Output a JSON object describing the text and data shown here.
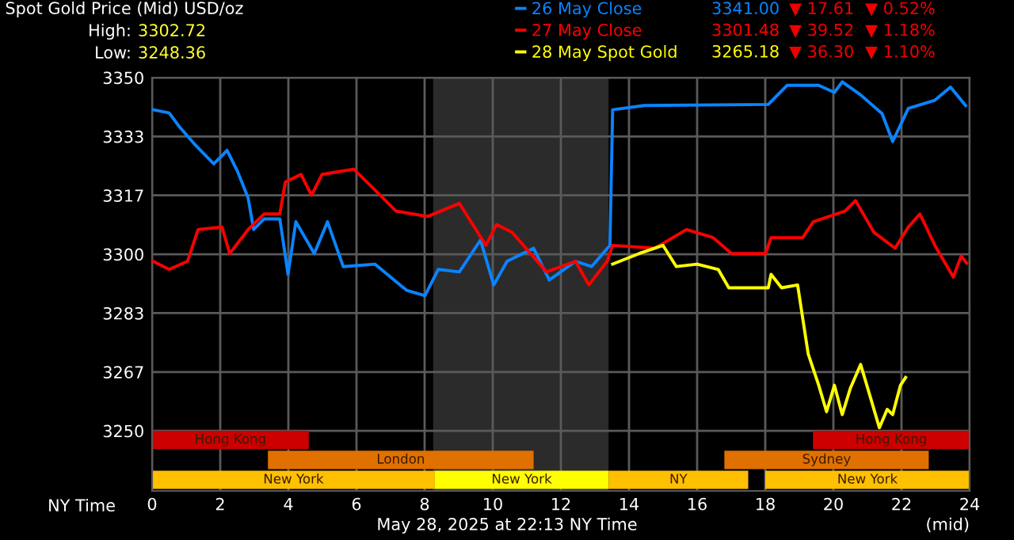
{
  "chart_data": {
    "type": "line",
    "title": "Spot Gold Price (Mid) USD/oz",
    "xlabel": "NY Time",
    "xlim": [
      0,
      24
    ],
    "ylim": [
      3233,
      3350
    ],
    "xticks": [
      0,
      2,
      4,
      6,
      8,
      10,
      12,
      14,
      16,
      18,
      20,
      22,
      24
    ],
    "yticks": [
      3250,
      {
        "value": 3266.67,
        "label": "3267"
      },
      {
        "value": 3283.33,
        "label": "3283"
      },
      3300,
      {
        "value": 3316.67,
        "label": "3317"
      },
      {
        "value": 3333.33,
        "label": "3333"
      },
      3350
    ],
    "grid": true,
    "legend": "top right",
    "line_style": "solid",
    "marker": "none",
    "bands": [
      {
        "axis": "x",
        "from": 8.25,
        "to": 13.4,
        "color": "#2b2b2b"
      },
      {
        "axis": "x",
        "from": 0,
        "to": 4.6,
        "label": "Hong Kong",
        "color": "#cc0000"
      },
      {
        "axis": "x",
        "from": 19.4,
        "to": 24,
        "label": "Hong Kong",
        "color": "#cc0000"
      },
      {
        "axis": "x",
        "from": 3.4,
        "to": 11.2,
        "label": "London",
        "color": "#e07000"
      },
      {
        "axis": "x",
        "from": 16.8,
        "to": 22.8,
        "label": "Sydney",
        "color": "#e07000"
      },
      {
        "axis": "x",
        "from": 0,
        "to": 8.3,
        "label": "New York",
        "color": "#ffc000"
      },
      {
        "axis": "x",
        "from": 8.3,
        "to": 13.4,
        "label": "New York",
        "color": "#ffff00"
      },
      {
        "axis": "x",
        "from": 13.4,
        "to": 17.5,
        "label": "NY",
        "color": "#ffc000"
      },
      {
        "axis": "x",
        "from": 18,
        "to": 24,
        "label": "New York",
        "color": "#ffc000"
      }
    ],
    "annotations": [
      "High:",
      "3302.72",
      "Low:",
      "3248.36",
      "3341.00",
      "▼ 17.61",
      "▼ 0.52%",
      "3301.48",
      "▼ 39.52",
      "▼ 1.18%",
      "3265.18",
      "▼ 36.30",
      "▼ 1.10%",
      "May 28, 2025 at 22:13 NY Time",
      "(mid)"
    ],
    "series": [
      {
        "name": "26 May Close",
        "color": "#0a84ff",
        "x": [
          0.03,
          0.5,
          0.8,
          1.27,
          1.81,
          2.05,
          2.2,
          2.51,
          2.82,
          2.98,
          3.29,
          3.75,
          3.99,
          4.22,
          4.76,
          5.15,
          5.61,
          6.54,
          7.47,
          8.01,
          8.4,
          9.02,
          9.64,
          10.03,
          10.42,
          11.2,
          11.66,
          12.43,
          12.9,
          13.44,
          13.52,
          14.45,
          18.09,
          18.64,
          19.57,
          20.03,
          20.26,
          20.8,
          21.43,
          21.74,
          22.2,
          22.98,
          23.44,
          23.88
        ],
        "values": [
          3340.9,
          3340,
          3336.1,
          3330.9,
          3325.6,
          3327.9,
          3329.4,
          3323.4,
          3315.9,
          3307,
          3310,
          3310,
          3294.3,
          3309.2,
          3300.2,
          3309.2,
          3296.5,
          3297.2,
          3289.8,
          3288.3,
          3295.7,
          3295,
          3304,
          3291.3,
          3298,
          3301.7,
          3292.7,
          3298,
          3296.5,
          3302.5,
          3340.9,
          3342.1,
          3342.4,
          3347.8,
          3347.8,
          3345.8,
          3348.8,
          3345.1,
          3339.8,
          3331.9,
          3341.3,
          3343.6,
          3347.3,
          3342.1
        ]
      },
      {
        "name": "27 May Close",
        "color": "#ff0000",
        "x": [
          0.03,
          0.5,
          1.04,
          1.35,
          2.05,
          2.28,
          2.82,
          3.29,
          3.75,
          3.91,
          4.37,
          4.68,
          4.99,
          5.92,
          6.54,
          7.16,
          8.09,
          9.02,
          9.8,
          10.11,
          10.57,
          11.58,
          12.43,
          12.82,
          13.36,
          13.52,
          14.76,
          15.69,
          16.47,
          17.01,
          18.01,
          18.17,
          19.1,
          19.41,
          20.34,
          20.65,
          21.19,
          21.81,
          22.2,
          22.54,
          22.98,
          23.52,
          23.75,
          23.91
        ],
        "values": [
          3298,
          3295.7,
          3298,
          3307,
          3307.7,
          3300.2,
          3307,
          3311.4,
          3311.4,
          3320.4,
          3322.6,
          3316.7,
          3322.6,
          3324.1,
          3318.2,
          3312.2,
          3310.7,
          3314.4,
          3302.5,
          3308.4,
          3306.2,
          3295,
          3298,
          3291.3,
          3298,
          3302.5,
          3301.7,
          3307,
          3304.7,
          3300.2,
          3300.2,
          3304.7,
          3304.7,
          3309.2,
          3312.2,
          3315.2,
          3306.2,
          3301.7,
          3307.7,
          3311.4,
          3302.5,
          3293.5,
          3299.5,
          3297.5
        ]
      },
      {
        "name": "28 May Spot Gold",
        "color": "#ffff00",
        "x": [
          13.52,
          14.3,
          15,
          15.39,
          16.0,
          16.62,
          16.93,
          18.09,
          18.17,
          18.48,
          18.95,
          19.26,
          19.57,
          19.8,
          20.03,
          20.26,
          20.5,
          20.8,
          21.12,
          21.35,
          21.58,
          21.74,
          21.97,
          22.12
        ],
        "values": [
          3297.2,
          3300.2,
          3302.5,
          3296.5,
          3297.2,
          3295.7,
          3290.5,
          3290.5,
          3294.3,
          3290.5,
          3291.3,
          3271.8,
          3262.9,
          3255.4,
          3262.9,
          3254.6,
          3262.1,
          3268.8,
          3258.4,
          3250.9,
          3256.1,
          3254.6,
          3262.9,
          3265.1
        ]
      }
    ]
  }
}
